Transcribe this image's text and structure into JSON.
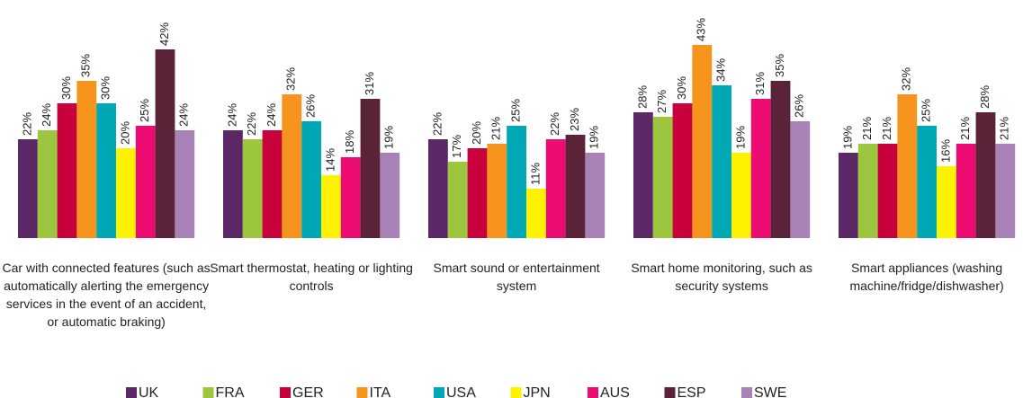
{
  "chart_data": {
    "type": "bar",
    "categories": [
      "Car with connected features (such as automatically alerting the emergency services in the event of an accident, or automatic braking)",
      "Smart thermostat, heating or lighting controls",
      "Smart sound or entertainment system",
      "Smart home monitoring, such as security systems",
      "Smart appliances (washing machine/fridge/dishwasher)"
    ],
    "ylim": [
      0,
      50
    ],
    "series": [
      {
        "name": "UK",
        "color": "#5c2766",
        "values": [
          22,
          24,
          22,
          28,
          19
        ],
        "value_labels": [
          "22%",
          "24%",
          "22%",
          "28%",
          "19%"
        ]
      },
      {
        "name": "FRA",
        "color": "#9dc63f",
        "values": [
          24,
          22,
          17,
          27,
          21
        ],
        "value_labels": [
          "24%",
          "22%",
          "17%",
          "27%",
          "21%"
        ]
      },
      {
        "name": "GER",
        "color": "#c8003c",
        "values": [
          30,
          24,
          20,
          30,
          21
        ],
        "value_labels": [
          "30%",
          "24%",
          "20%",
          "30%",
          "21%"
        ]
      },
      {
        "name": "ITA",
        "color": "#f7941d",
        "values": [
          35,
          32,
          21,
          43,
          32
        ],
        "value_labels": [
          "35%",
          "32%",
          "21%",
          "43%",
          "32%"
        ]
      },
      {
        "name": "USA",
        "color": "#00a8b5",
        "values": [
          30,
          26,
          25,
          34,
          25
        ],
        "value_labels": [
          "30%",
          "26%",
          "25%",
          "34%",
          "25%"
        ]
      },
      {
        "name": "JPN",
        "color": "#fff200",
        "values": [
          20,
          14,
          11,
          19,
          16
        ],
        "value_labels": [
          "20%",
          "14%",
          "11%",
          "19%",
          "16%"
        ]
      },
      {
        "name": "AUS",
        "color": "#ec0c72",
        "values": [
          25,
          18,
          22,
          31,
          21
        ],
        "value_labels": [
          "25%",
          "18%",
          "22%",
          "31%",
          "21%"
        ]
      },
      {
        "name": "ESP",
        "color": "#5a2338",
        "values": [
          42,
          31,
          23,
          35,
          28
        ],
        "value_labels": [
          "42%",
          "31%",
          "23%",
          "35%",
          "28%"
        ]
      },
      {
        "name": "SWE",
        "color": "#a882b6",
        "values": [
          24,
          19,
          19,
          26,
          21
        ],
        "value_labels": [
          "24%",
          "19%",
          "19%",
          "26%",
          "21%"
        ]
      }
    ]
  }
}
